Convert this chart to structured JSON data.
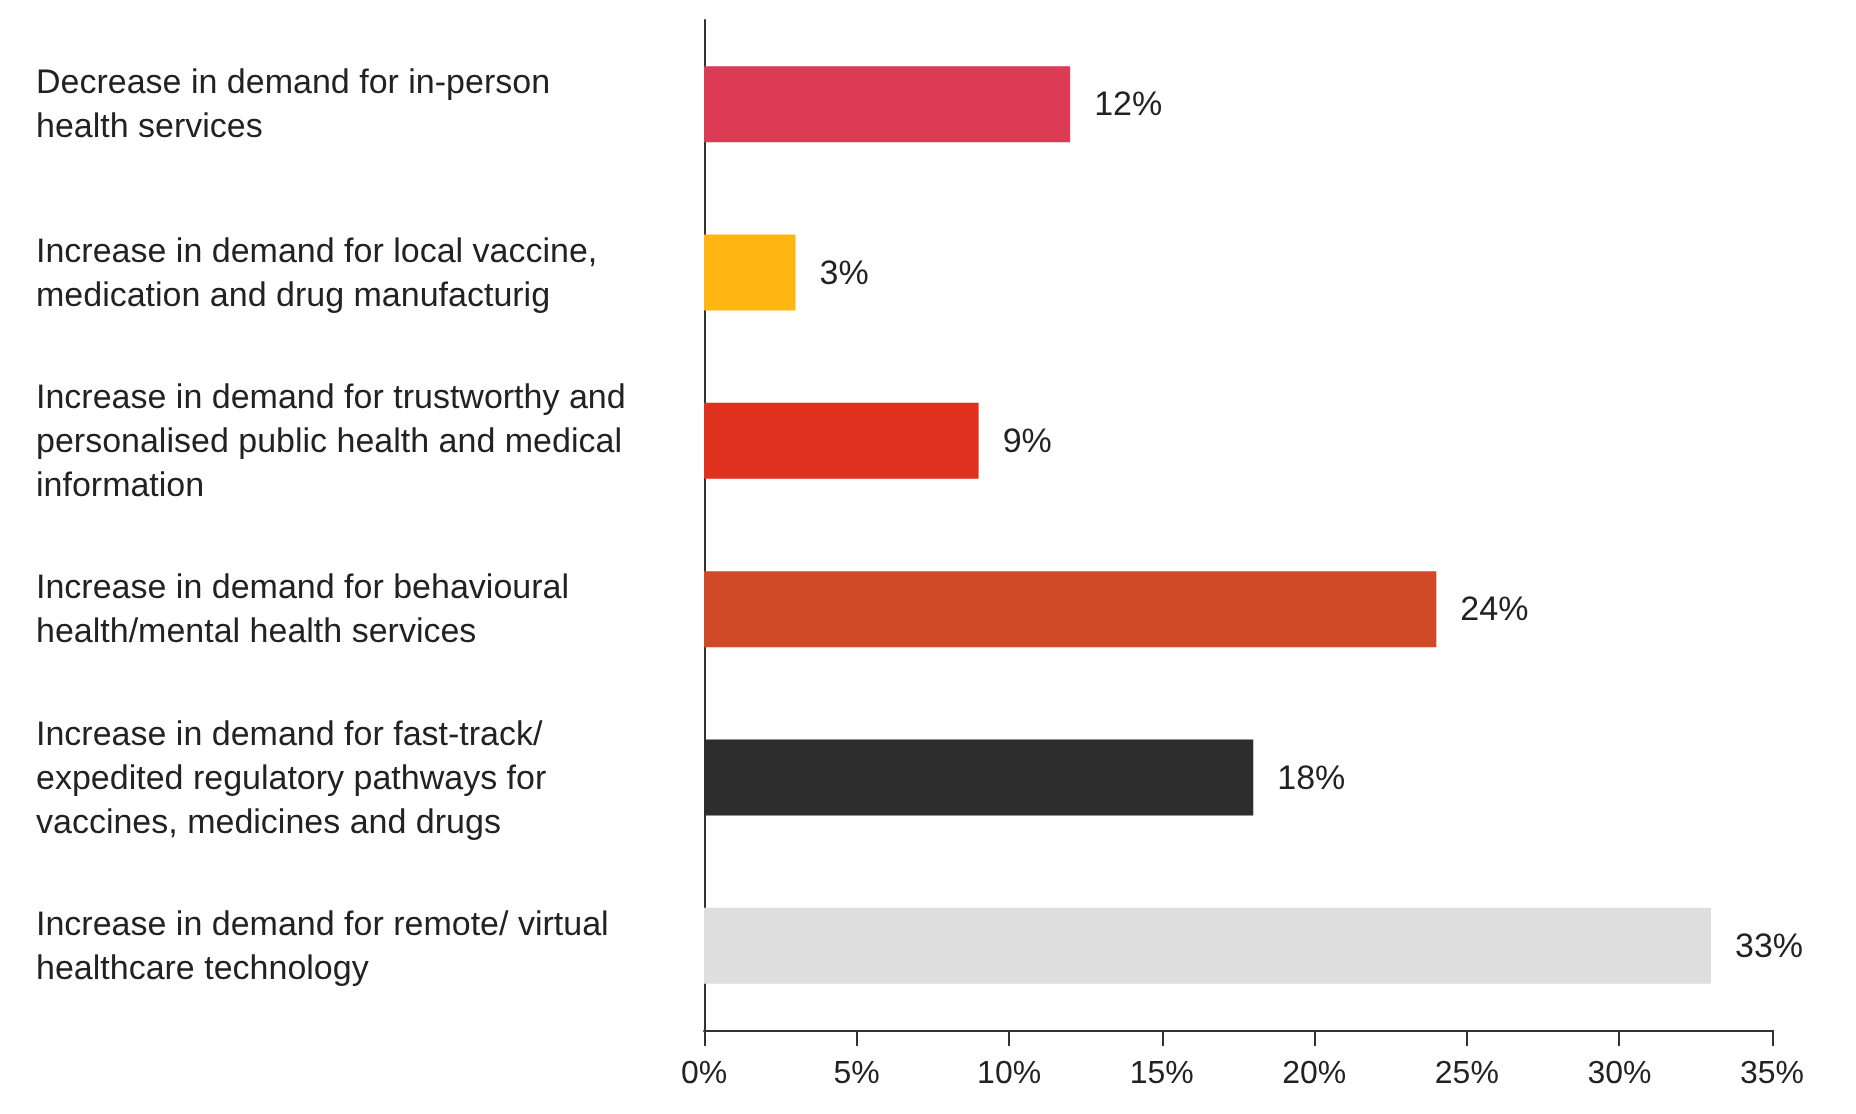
{
  "chart_data": {
    "type": "bar",
    "orientation": "horizontal",
    "categories": [
      "Decrease in demand for in-person health services",
      "Increase in demand for local vaccine, medication and drug manufacturig",
      "Increase in demand for trustworthy and personalised public health and medical information",
      "Increase in demand for behavioural health/mental health services",
      "Increase in demand for fast-track/ expedited regulatory pathways for vaccines, medicines and drugs",
      "Increase in demand for remote/ virtual healthcare technology"
    ],
    "values": [
      12,
      3,
      9,
      24,
      18,
      33
    ],
    "colors": [
      "#dc3a55",
      "#ffb612",
      "#e0301e",
      "#d04a27",
      "#2d2d2d",
      "#dedede"
    ],
    "value_labels": [
      "12%",
      "3%",
      "9%",
      "24%",
      "18%",
      "33%"
    ],
    "xlim": [
      0,
      35
    ],
    "xticks": [
      {
        "value": 0,
        "label": "0%"
      },
      {
        "value": 5,
        "label": "5%"
      },
      {
        "value": 10,
        "label": "10%"
      },
      {
        "value": 15,
        "label": "15%"
      },
      {
        "value": 20,
        "label": "20%"
      },
      {
        "value": 25,
        "label": "25%"
      },
      {
        "value": 30,
        "label": "30%"
      },
      {
        "value": 35,
        "label": "35%"
      }
    ],
    "grid": false
  }
}
